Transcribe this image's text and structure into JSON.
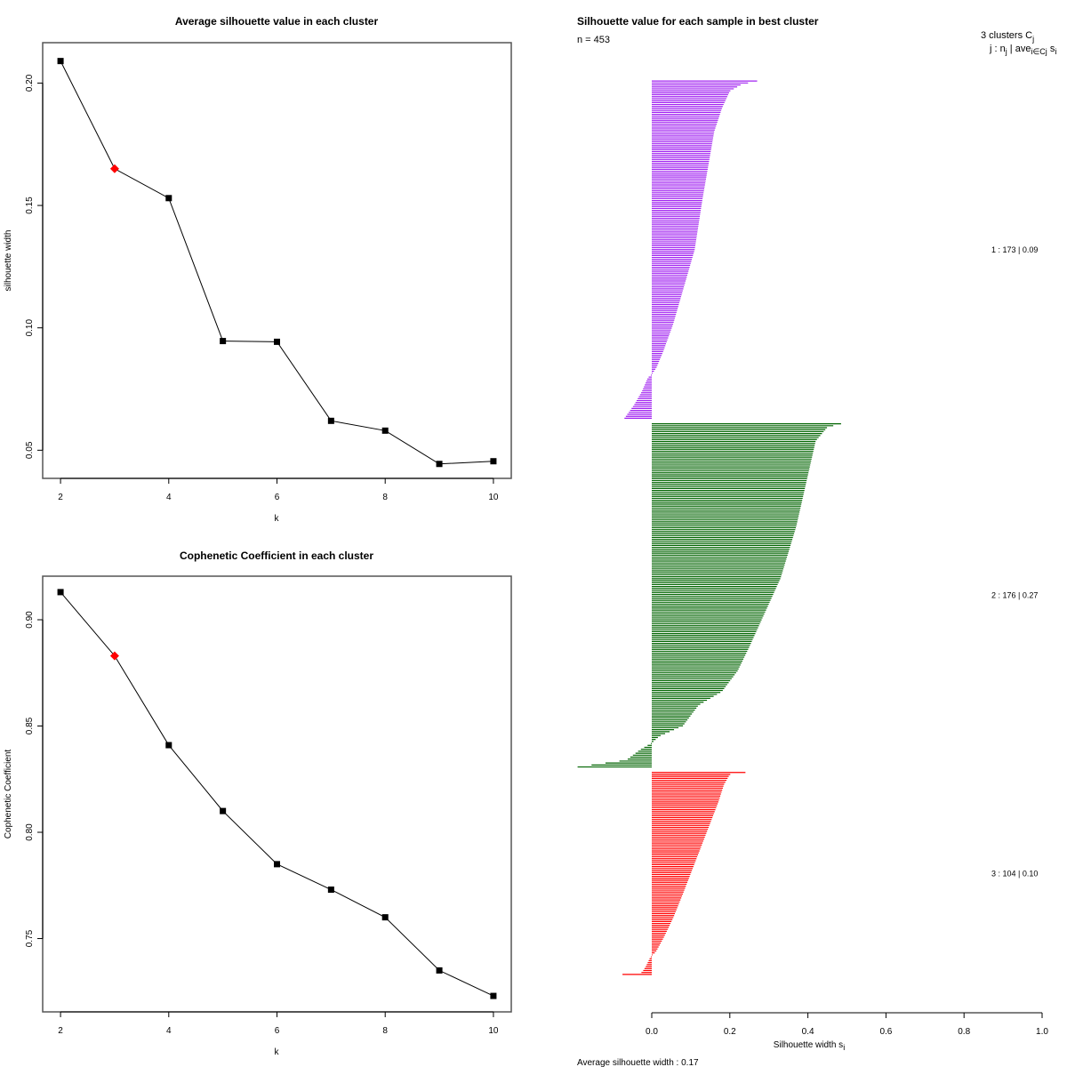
{
  "chart_data": [
    {
      "type": "line",
      "id": "silhouette-avg",
      "title": "Average silhouette value in each cluster",
      "xlabel": "k",
      "ylabel": "silhouette width",
      "x": [
        2,
        3,
        4,
        5,
        6,
        7,
        8,
        9,
        10
      ],
      "values": [
        0.209,
        0.165,
        0.153,
        0.0946,
        0.0943,
        0.062,
        0.058,
        0.0444,
        0.0455
      ],
      "highlight_x": 3,
      "highlight_color": "#ff0000",
      "xticks": [
        "2",
        "4",
        "6",
        "8",
        "10"
      ],
      "xtick_values": [
        2,
        4,
        6,
        8,
        10
      ],
      "yticks": [
        "0.05",
        "0.10",
        "0.15",
        "0.20"
      ],
      "ytick_values": [
        0.05,
        0.1,
        0.15,
        0.2
      ],
      "xlim": [
        1.67,
        10.33
      ],
      "ylim": [
        0.0385,
        0.2165
      ],
      "grid": false
    },
    {
      "type": "line",
      "id": "cophenetic",
      "title": "Cophenetic Coefficient in each cluster",
      "xlabel": "k",
      "ylabel": "Cophenetic Coefficient",
      "x": [
        2,
        3,
        4,
        5,
        6,
        7,
        8,
        9,
        10
      ],
      "values": [
        0.913,
        0.883,
        0.841,
        0.81,
        0.785,
        0.773,
        0.76,
        0.735,
        0.723
      ],
      "highlight_x": 3,
      "highlight_color": "#ff0000",
      "xticks": [
        "2",
        "4",
        "6",
        "8",
        "10"
      ],
      "xtick_values": [
        2,
        4,
        6,
        8,
        10
      ],
      "yticks": [
        "0.75",
        "0.80",
        "0.85",
        "0.90"
      ],
      "ytick_values": [
        0.75,
        0.8,
        0.85,
        0.9
      ],
      "xlim": [
        1.67,
        10.33
      ],
      "ylim": [
        0.7155,
        0.9205
      ],
      "grid": false
    },
    {
      "type": "bar",
      "id": "silhouette-samples",
      "orientation": "horizontal",
      "title": "Silhouette value for each sample in best cluster",
      "n_label": "n = 453",
      "xlabel": "Silhouette width s",
      "xlabel_sub": "i",
      "xticks": [
        "0.0",
        "0.2",
        "0.4",
        "0.6",
        "0.8",
        "1.0"
      ],
      "xtick_values": [
        0,
        0.2,
        0.4,
        0.6,
        0.8,
        1.0
      ],
      "xlim": [
        -0.19,
        1.0
      ],
      "legend_header_1": "3  clusters  C",
      "legend_header_1_sub": "j",
      "legend_header_2": "j :  n",
      "legend_header_2_sub": "j",
      "legend_header_2_rest": " | ave",
      "legend_header_2_sub2": "i∈Cj",
      "legend_header_2_end": " s",
      "legend_header_2_sub3": "i",
      "average_label": "Average silhouette width :  0.17",
      "clusters": [
        {
          "label": "1 :   173  |  0.09",
          "n": 173,
          "mean": 0.09,
          "color": "#a020f0",
          "profile": [
            [
              0,
              0.27
            ],
            [
              0.01,
              0.23
            ],
            [
              0.03,
              0.2
            ],
            [
              0.08,
              0.18
            ],
            [
              0.15,
              0.16
            ],
            [
              0.25,
              0.145
            ],
            [
              0.35,
              0.13
            ],
            [
              0.5,
              0.11
            ],
            [
              0.62,
              0.08
            ],
            [
              0.72,
              0.055
            ],
            [
              0.8,
              0.03
            ],
            [
              0.85,
              0.012
            ],
            [
              0.87,
              0.0
            ],
            [
              0.88,
              -0.01
            ],
            [
              0.92,
              -0.025
            ],
            [
              0.96,
              -0.045
            ],
            [
              1.0,
              -0.07
            ]
          ]
        },
        {
          "label": "2 :   176  |  0.27",
          "n": 176,
          "mean": 0.27,
          "color": "#006400",
          "profile": [
            [
              0,
              0.485
            ],
            [
              0.01,
              0.45
            ],
            [
              0.05,
              0.42
            ],
            [
              0.15,
              0.4
            ],
            [
              0.3,
              0.37
            ],
            [
              0.45,
              0.33
            ],
            [
              0.55,
              0.29
            ],
            [
              0.65,
              0.25
            ],
            [
              0.72,
              0.22
            ],
            [
              0.78,
              0.18
            ],
            [
              0.82,
              0.12
            ],
            [
              0.88,
              0.08
            ],
            [
              0.91,
              0.02
            ],
            [
              0.93,
              0.0
            ],
            [
              0.95,
              -0.03
            ],
            [
              0.98,
              -0.065
            ],
            [
              1.0,
              -0.19
            ]
          ]
        },
        {
          "label": "3 :   104  |  0.10",
          "n": 104,
          "mean": 0.1,
          "color": "#ff0000",
          "profile": [
            [
              0,
              0.24
            ],
            [
              0.01,
              0.2
            ],
            [
              0.06,
              0.185
            ],
            [
              0.15,
              0.17
            ],
            [
              0.3,
              0.14
            ],
            [
              0.45,
              0.11
            ],
            [
              0.6,
              0.08
            ],
            [
              0.72,
              0.055
            ],
            [
              0.82,
              0.03
            ],
            [
              0.89,
              0.01
            ],
            [
              0.9,
              0.003
            ],
            [
              0.92,
              -0.005
            ],
            [
              0.96,
              -0.015
            ],
            [
              0.99,
              -0.025
            ],
            [
              1.0,
              -0.075
            ]
          ]
        }
      ]
    }
  ]
}
